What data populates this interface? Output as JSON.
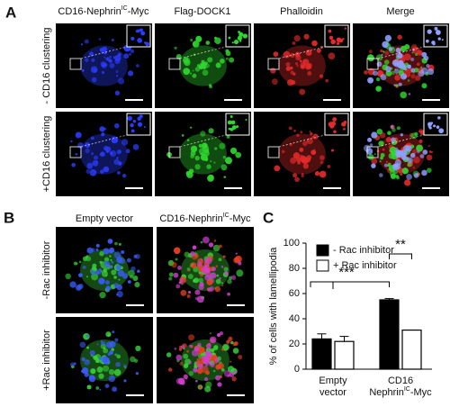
{
  "panel_a": {
    "letter": "A",
    "columns": [
      {
        "text": "CD16-Nephrin",
        "sup": "IC",
        "tail": "-Myc"
      },
      {
        "text": "Flag-DOCK1"
      },
      {
        "text": "Phalloidin"
      },
      {
        "text": "Merge"
      }
    ],
    "rows": [
      "- CD16 clustering",
      "+CD16 clustering"
    ]
  },
  "panel_b": {
    "letter": "B",
    "columns": [
      {
        "text": "Empty vector"
      },
      {
        "text": "CD16-Nephrin",
        "sup": "IC",
        "tail": "-Myc"
      }
    ],
    "rows": [
      "-Rac inhibitor",
      "+Rac inhibitor"
    ]
  },
  "chart_data": {
    "type": "bar",
    "panel_label": "C",
    "y_label": "% of cells with lamellipodia",
    "categories": [
      {
        "line1": "Empty",
        "line2": "vector"
      },
      {
        "line1": "CD16",
        "line2": "Nephrin",
        "sup": "IC",
        "tail": "-Myc"
      }
    ],
    "series": [
      {
        "name": "- Rac inhibitor",
        "color": "#000000",
        "values": [
          24,
          55
        ],
        "errors": [
          4,
          1
        ]
      },
      {
        "name": "+ Rac inhibitor",
        "color": "#ffffff",
        "values": [
          22,
          31
        ],
        "errors": [
          4,
          0
        ]
      }
    ],
    "ylim": [
      0,
      100
    ],
    "yticks": [
      0,
      20,
      40,
      60,
      80,
      100
    ],
    "grid": false,
    "legend": "upper left",
    "annotations": [
      {
        "text": "***"
      },
      {
        "text": "**"
      }
    ]
  }
}
